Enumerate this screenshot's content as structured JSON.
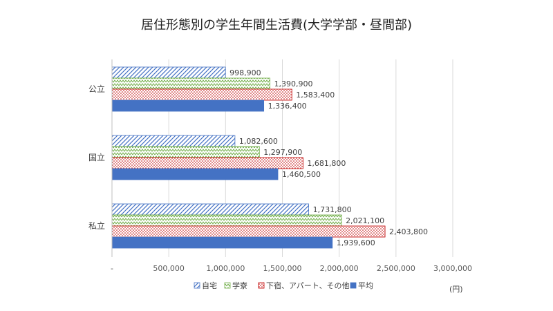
{
  "chart_data": {
    "type": "bar",
    "orientation": "horizontal",
    "title": "居住形態別の学生年間生活費(大学学部・昼間部)",
    "unit": "(円)",
    "categories": [
      "公立",
      "国立",
      "私立"
    ],
    "series": [
      {
        "name": "自宅",
        "values": [
          998900,
          1082600,
          1731800
        ],
        "color": "#4472c4",
        "pattern": "diagonal-lines"
      },
      {
        "name": "学寮",
        "values": [
          1390900,
          1297900,
          2021100
        ],
        "color": "#70ad47",
        "pattern": "zigzag"
      },
      {
        "name": "下宿、アパート、その他",
        "values": [
          1583400,
          1681800,
          2403800
        ],
        "color": "#c00000",
        "pattern": "dots"
      },
      {
        "name": "平均",
        "values": [
          1336400,
          1460500,
          1939600
        ],
        "color": "#4472c4",
        "pattern": "solid"
      }
    ],
    "value_labels": [
      [
        "998,900",
        "1,082,600",
        "1,731,800"
      ],
      [
        "1,390,900",
        "1,297,900",
        "2,021,100"
      ],
      [
        "1,583,400",
        "1,681,800",
        "2,403,800"
      ],
      [
        "1,336,400",
        "1,460,500",
        "1,939,600"
      ]
    ],
    "xlim": [
      0,
      3000000
    ],
    "x_ticks": [
      0,
      500000,
      1000000,
      1500000,
      2000000,
      2500000,
      3000000
    ],
    "x_tick_labels": [
      "-",
      "500,000",
      "1,000,000",
      "1,500,000",
      "2,000,000",
      "2,500,000",
      "3,000,000"
    ],
    "grid": true,
    "legend_position": "bottom"
  }
}
